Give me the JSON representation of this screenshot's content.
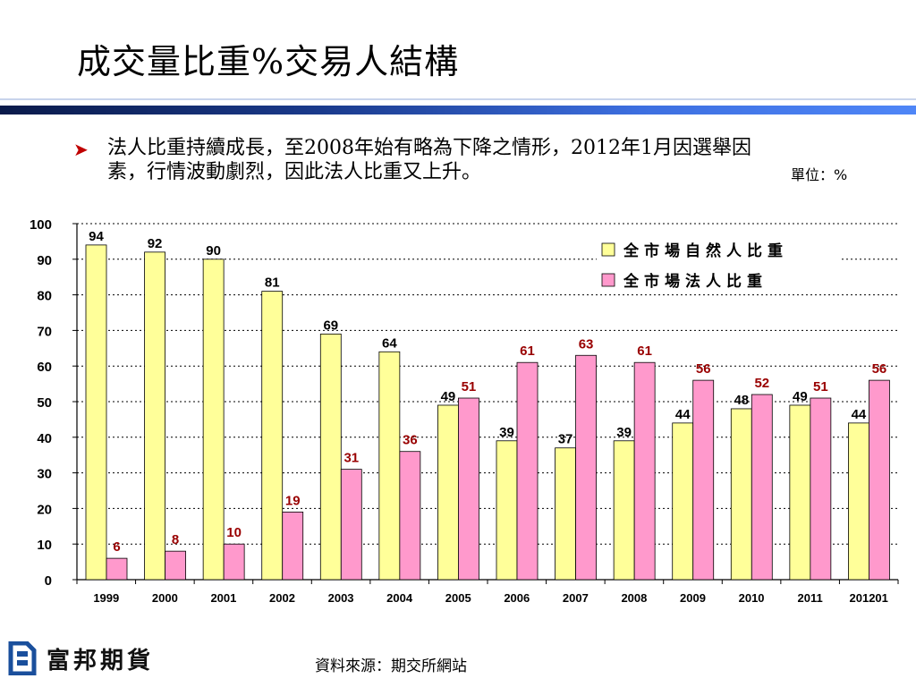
{
  "slide": {
    "title": "成交量比重%交易人結構",
    "bullet": "法人比重持續成長，至2008年始有略為下降之情形，2012年1月因選舉因素，行情波動劇烈，因此法人比重又上升。",
    "unit_label": "單位：%",
    "source": "資料來源：期交所網站",
    "logo_text": "富邦期貨"
  },
  "colors": {
    "natural": "#FFFF99",
    "institutional": "#FF99CC",
    "label_natural": "#000000",
    "label_institutional": "#990000",
    "accent": "#C00000"
  },
  "chart_data": {
    "type": "bar",
    "categories": [
      "1999",
      "2000",
      "2001",
      "2002",
      "2003",
      "2004",
      "2005",
      "2006",
      "2007",
      "2008",
      "2009",
      "2010",
      "2011",
      "201201"
    ],
    "series": [
      {
        "name": "全市場自然人比重",
        "values": [
          94,
          92,
          90,
          81,
          69,
          64,
          49,
          39,
          37,
          39,
          44,
          48,
          49,
          44
        ]
      },
      {
        "name": "全市場法人比重",
        "values": [
          6,
          8,
          10,
          19,
          31,
          36,
          51,
          61,
          63,
          61,
          56,
          52,
          51,
          56
        ]
      }
    ],
    "yticks": [
      0,
      10,
      20,
      30,
      40,
      50,
      60,
      70,
      80,
      90,
      100
    ],
    "ylim": [
      0,
      100
    ],
    "title": "",
    "xlabel": "",
    "ylabel": "",
    "grid": "dotted horizontal",
    "legend_position": "top-right"
  }
}
